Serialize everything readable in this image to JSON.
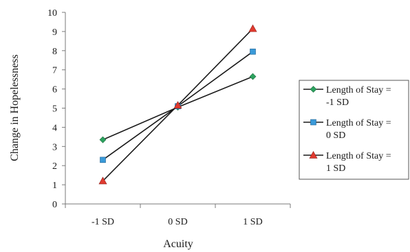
{
  "chart_data": {
    "type": "line",
    "title": "",
    "xlabel": "Acuity",
    "ylabel": "Change in Hopelessness",
    "categories": [
      "-1 SD",
      "0 SD",
      "1 SD"
    ],
    "ylim": [
      0,
      10
    ],
    "yticks": [
      "0",
      "1",
      "2",
      "3",
      "4",
      "5",
      "6",
      "7",
      "8",
      "9",
      "10"
    ],
    "grid": false,
    "legend_position": "right",
    "series": [
      {
        "name_line1": "Length of Stay =",
        "name_line2": "-1 SD",
        "values": [
          3.35,
          5.05,
          6.65
        ],
        "marker": "diamond",
        "marker_color": "#2ca25f"
      },
      {
        "name_line1": "Length of Stay =",
        "name_line2": "0 SD",
        "values": [
          2.3,
          5.1,
          7.95
        ],
        "marker": "square",
        "marker_color": "#3a9ad9"
      },
      {
        "name_line1": "Length of Stay =",
        "name_line2": "1 SD",
        "values": [
          1.2,
          5.15,
          9.15
        ],
        "marker": "triangle",
        "marker_color": "#e03a2f"
      }
    ]
  }
}
